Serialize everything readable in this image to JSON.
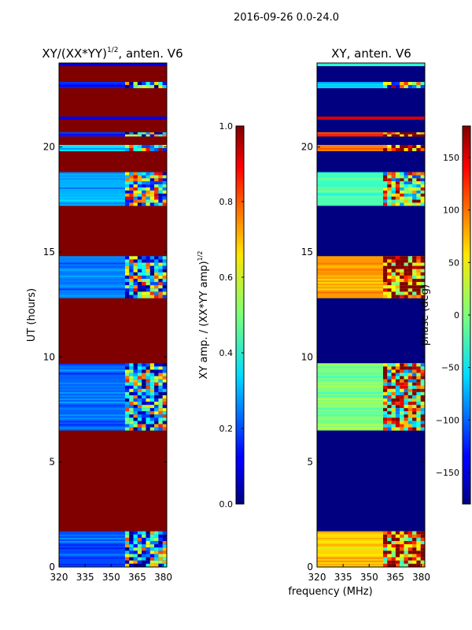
{
  "figure": {
    "suptitle": "2016-09-26 0.0-24.0",
    "xlabel_shared": "frequency (MHz)"
  },
  "chart_data": [
    {
      "id": "amp",
      "type": "heatmap",
      "title_main": "XY/(XX*YY)",
      "title_exp": "1/2",
      "title_rest": ", anten. V6",
      "xlabel": "",
      "ylabel": "UT (hours)",
      "x_ticks": [
        320,
        335,
        350,
        365,
        380
      ],
      "xlim": [
        320,
        382
      ],
      "y_ticks": [
        0,
        5,
        10,
        15,
        20
      ],
      "ylim": [
        0,
        24
      ],
      "colorbar": {
        "label_main": "XY amp. / (XX*YY amp)",
        "label_exp": "1/2",
        "ticks": [
          0.0,
          0.2,
          0.4,
          0.6,
          0.8,
          1.0
        ],
        "tick_labels": [
          "0.0",
          "0.2",
          "0.4",
          "0.6",
          "0.8",
          "1.0"
        ],
        "range": [
          0.0,
          1.0
        ]
      },
      "background_value": 1.0,
      "bands": [
        {
          "from": 0.0,
          "to": 1.7,
          "value": 0.2,
          "textured": true
        },
        {
          "from": 6.5,
          "to": 9.7,
          "value": 0.22,
          "textured": true
        },
        {
          "from": 12.8,
          "to": 14.8,
          "value": 0.25,
          "textured": true
        },
        {
          "from": 17.2,
          "to": 18.8,
          "value": 0.3,
          "textured": true
        },
        {
          "from": 19.8,
          "to": 20.1,
          "value": 0.35,
          "textured": true
        },
        {
          "from": 20.5,
          "to": 20.7,
          "value": 0.15,
          "textured": true
        },
        {
          "from": 21.3,
          "to": 21.45,
          "value": 0.1,
          "textured": false
        },
        {
          "from": 22.8,
          "to": 23.1,
          "value": 0.15,
          "textured": true
        },
        {
          "from": 23.85,
          "to": 24.0,
          "value": 0.1,
          "textured": false
        }
      ]
    },
    {
      "id": "phase",
      "type": "heatmap",
      "title_main": "XY, anten. V6",
      "xlabel": "",
      "ylabel": "",
      "x_ticks": [
        320,
        335,
        350,
        365,
        380
      ],
      "xlim": [
        320,
        382
      ],
      "y_ticks": [
        0,
        5,
        10,
        15,
        20
      ],
      "ylim": [
        0,
        24
      ],
      "colorbar": {
        "label_main": "phase (deg)",
        "ticks": [
          -150,
          -100,
          -50,
          0,
          50,
          100,
          150
        ],
        "tick_labels": [
          "−150",
          "−100",
          "−50",
          "0",
          "50",
          "100",
          "150"
        ],
        "range": [
          -180,
          180
        ]
      },
      "background_value": -180,
      "bands": [
        {
          "from": 0.0,
          "to": 1.7,
          "value": 60,
          "textured": true
        },
        {
          "from": 6.5,
          "to": 9.7,
          "value": 0,
          "textured": true
        },
        {
          "from": 12.8,
          "to": 14.8,
          "value": 80,
          "textured": true
        },
        {
          "from": 17.2,
          "to": 18.8,
          "value": -20,
          "textured": true
        },
        {
          "from": 19.8,
          "to": 20.1,
          "value": 90,
          "textured": true
        },
        {
          "from": 20.5,
          "to": 20.7,
          "value": 120,
          "textured": true
        },
        {
          "from": 21.3,
          "to": 21.45,
          "value": 150,
          "textured": false
        },
        {
          "from": 22.8,
          "to": 23.1,
          "value": -60,
          "textured": true
        },
        {
          "from": 23.85,
          "to": 24.0,
          "value": -30,
          "textured": false
        }
      ]
    }
  ]
}
